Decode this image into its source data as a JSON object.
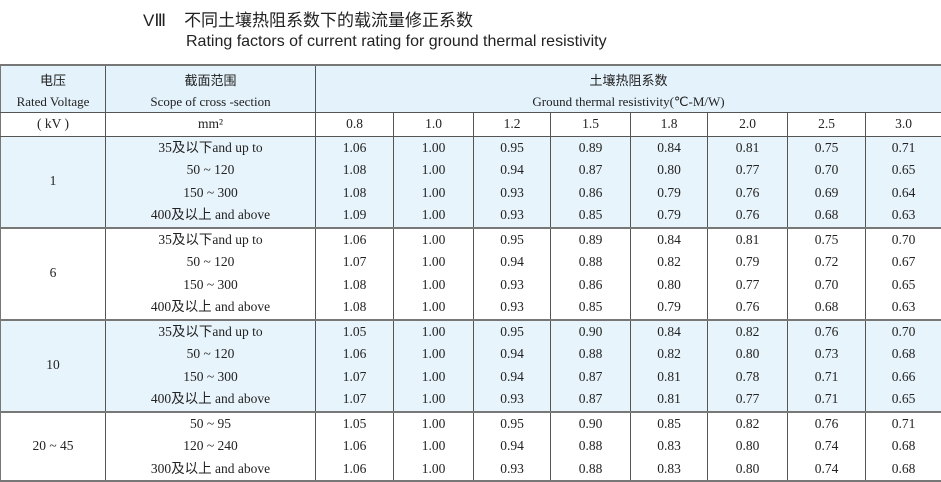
{
  "title": {
    "number": "VⅢ",
    "zh": "不同土壤热阻系数下的载流量修正系数",
    "en": "Rating factors of current rating for ground thermal resistivity"
  },
  "header": {
    "voltage_zh": "电压",
    "voltage_en": "Rated Voltage",
    "voltage_unit": "( kV )",
    "scope_zh": "截面范围",
    "scope_en": "Scope of cross -section",
    "scope_unit": "mm²",
    "resist_zh": "土壤热阻系数",
    "resist_en": "Ground  thermal resistivity(℃-M/W)",
    "resistivities": [
      "0.8",
      "1.0",
      "1.2",
      "1.5",
      "1.8",
      "2.0",
      "2.5",
      "3.0"
    ]
  },
  "highlight_color": "#e8f4fb",
  "groups": [
    {
      "voltage": "1",
      "highlight": true,
      "rows": [
        {
          "scope": "35及以下and up to",
          "values": [
            "1.06",
            "1.00",
            "0.95",
            "0.89",
            "0.84",
            "0.81",
            "0.75",
            "0.71"
          ]
        },
        {
          "scope": "50 ~ 120",
          "values": [
            "1.08",
            "1.00",
            "0.94",
            "0.87",
            "0.80",
            "0.77",
            "0.70",
            "0.65"
          ]
        },
        {
          "scope": "150 ~ 300",
          "values": [
            "1.08",
            "1.00",
            "0.93",
            "0.86",
            "0.79",
            "0.76",
            "0.69",
            "0.64"
          ]
        },
        {
          "scope": "400及以上 and  above",
          "values": [
            "1.09",
            "1.00",
            "0.93",
            "0.85",
            "0.79",
            "0.76",
            "0.68",
            "0.63"
          ]
        }
      ]
    },
    {
      "voltage": "6",
      "highlight": false,
      "rows": [
        {
          "scope": "35及以下and up to",
          "values": [
            "1.06",
            "1.00",
            "0.95",
            "0.89",
            "0.84",
            "0.81",
            "0.75",
            "0.70"
          ]
        },
        {
          "scope": "50 ~ 120",
          "values": [
            "1.07",
            "1.00",
            "0.94",
            "0.88",
            "0.82",
            "0.79",
            "0.72",
            "0.67"
          ]
        },
        {
          "scope": "150 ~ 300",
          "values": [
            "1.08",
            "1.00",
            "0.93",
            "0.86",
            "0.80",
            "0.77",
            "0.70",
            "0.65"
          ]
        },
        {
          "scope": "400及以上 and  above",
          "values": [
            "1.08",
            "1.00",
            "0.93",
            "0.85",
            "0.79",
            "0.76",
            "0.68",
            "0.63"
          ]
        }
      ]
    },
    {
      "voltage": "10",
      "highlight": true,
      "rows": [
        {
          "scope": "35及以下and up to",
          "values": [
            "1.05",
            "1.00",
            "0.95",
            "0.90",
            "0.84",
            "0.82",
            "0.76",
            "0.70"
          ]
        },
        {
          "scope": "50 ~ 120",
          "values": [
            "1.06",
            "1.00",
            "0.94",
            "0.88",
            "0.82",
            "0.80",
            "0.73",
            "0.68"
          ]
        },
        {
          "scope": "150 ~ 300",
          "values": [
            "1.07",
            "1.00",
            "0.94",
            "0.87",
            "0.81",
            "0.78",
            "0.71",
            "0.66"
          ]
        },
        {
          "scope": "400及以上 and  above",
          "values": [
            "1.07",
            "1.00",
            "0.93",
            "0.87",
            "0.81",
            "0.77",
            "0.71",
            "0.65"
          ]
        }
      ]
    },
    {
      "voltage": "20 ~ 45",
      "highlight": false,
      "rows": [
        {
          "scope": "50 ~ 95",
          "values": [
            "1.05",
            "1.00",
            "0.95",
            "0.90",
            "0.85",
            "0.82",
            "0.76",
            "0.71"
          ]
        },
        {
          "scope": "120 ~ 240",
          "values": [
            "1.06",
            "1.00",
            "0.94",
            "0.88",
            "0.83",
            "0.80",
            "0.74",
            "0.68"
          ]
        },
        {
          "scope": "300及以上 and  above",
          "values": [
            "1.06",
            "1.00",
            "0.93",
            "0.88",
            "0.83",
            "0.80",
            "0.74",
            "0.68"
          ]
        }
      ]
    }
  ]
}
